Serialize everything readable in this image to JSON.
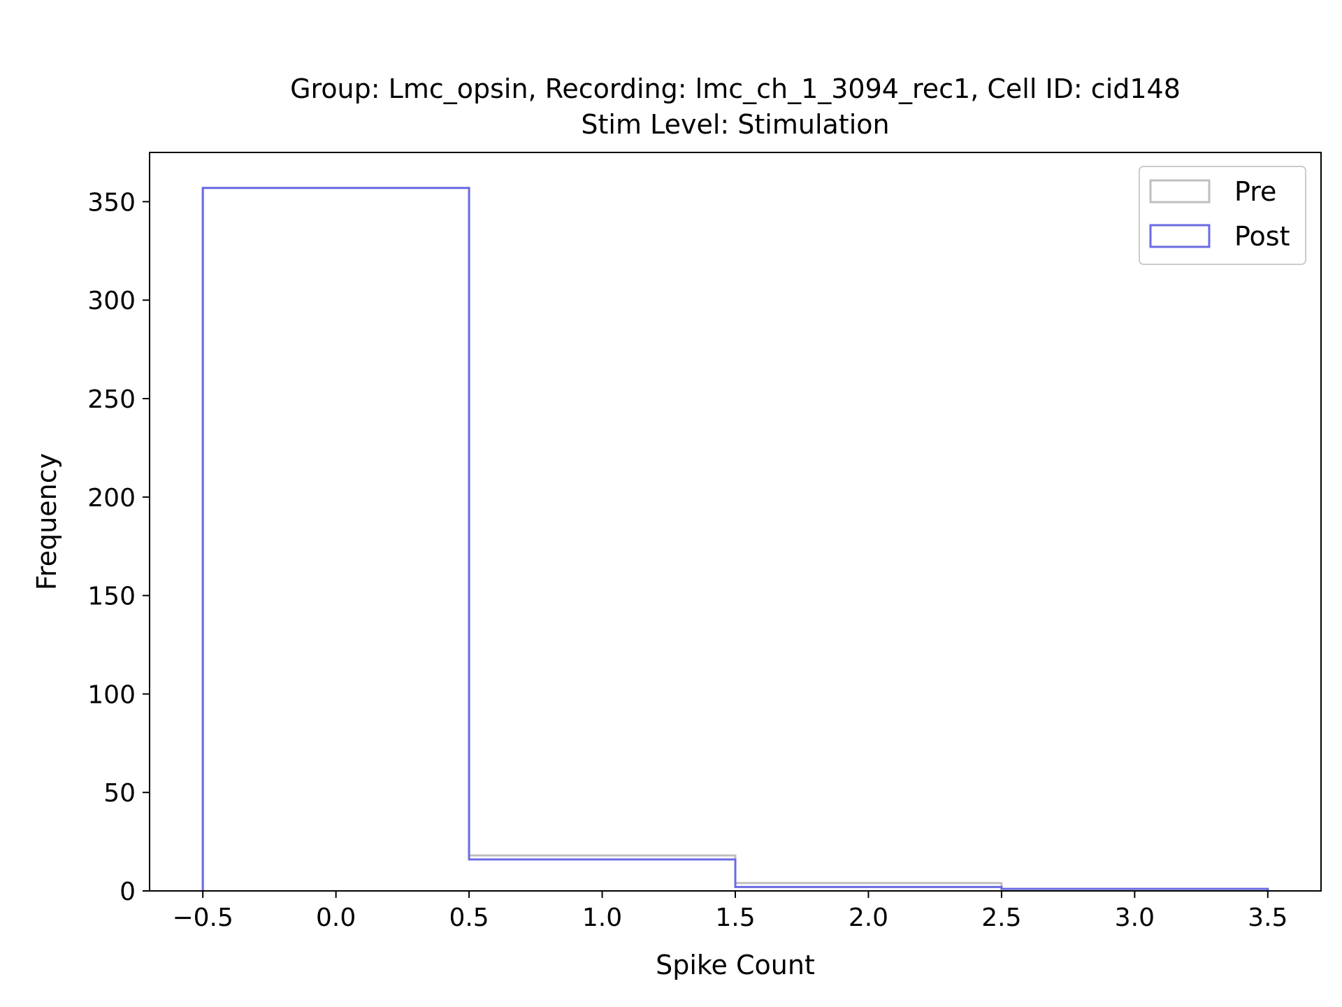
{
  "chart_data": {
    "type": "histogram",
    "title_line1": "Group: Lmc_opsin, Recording: lmc_ch_1_3094_rec1, Cell ID: cid148",
    "title_line2": "Stim Level: Stimulation",
    "xlabel": "Spike Count",
    "ylabel": "Frequency",
    "xlim": [
      -0.7,
      3.7
    ],
    "ylim": [
      0,
      375
    ],
    "xticks": [
      -0.5,
      0.0,
      0.5,
      1.0,
      1.5,
      2.0,
      2.5,
      3.0,
      3.5
    ],
    "xtick_labels": [
      "−0.5",
      "0.0",
      "0.5",
      "1.0",
      "1.5",
      "2.0",
      "2.5",
      "3.0",
      "3.5"
    ],
    "yticks": [
      0,
      50,
      100,
      150,
      200,
      250,
      300,
      350
    ],
    "ytick_labels": [
      "0",
      "50",
      "100",
      "150",
      "200",
      "250",
      "300",
      "350"
    ],
    "bin_edges": [
      -0.5,
      0.5,
      1.5,
      2.5,
      3.5
    ],
    "grid": false,
    "legend_position": "top-right",
    "series": [
      {
        "name": "Pre",
        "counts": [
          357,
          18,
          4,
          1
        ],
        "color": "#bfbfbf"
      },
      {
        "name": "Post",
        "counts": [
          357,
          16,
          2,
          1
        ],
        "color": "#6b6be3"
      }
    ]
  }
}
